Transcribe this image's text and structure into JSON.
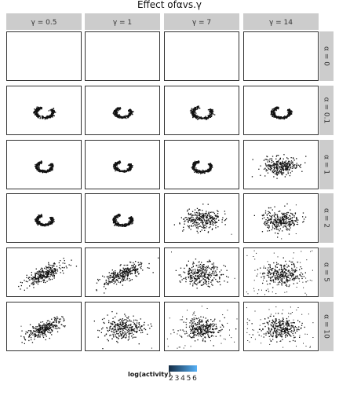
{
  "chart_data": {
    "type": "scatter",
    "title": "Effect ofαvs.γ",
    "facet_cols": [
      "γ = 0.5",
      "γ = 1",
      "γ = 7",
      "γ = 14"
    ],
    "facet_rows": [
      "α = 0",
      "α = 0.1",
      "α = 1",
      "α = 2",
      "α = 5",
      "α = 10"
    ],
    "panels": [
      [
        {
          "shape": "none"
        },
        {
          "shape": "none"
        },
        {
          "shape": "none"
        },
        {
          "shape": "none"
        }
      ],
      [
        {
          "shape": "crescent",
          "spread": 0.1,
          "outliers": 0
        },
        {
          "shape": "crescent",
          "spread": 0.09,
          "outliers": 0
        },
        {
          "shape": "crescent",
          "spread": 0.11,
          "outliers": 0
        },
        {
          "shape": "crescent",
          "spread": 0.1,
          "outliers": 0
        }
      ],
      [
        {
          "shape": "crescent",
          "spread": 0.09,
          "outliers": 0
        },
        {
          "shape": "crescent",
          "spread": 0.09,
          "outliers": 0
        },
        {
          "shape": "crescent",
          "spread": 0.1,
          "outliers": 0
        },
        {
          "shape": "blob",
          "spread": 0.11,
          "outliers": 0
        }
      ],
      [
        {
          "shape": "crescent",
          "spread": 0.09,
          "outliers": 0
        },
        {
          "shape": "crescent",
          "spread": 0.1,
          "outliers": 0
        },
        {
          "shape": "blob",
          "spread": 0.12,
          "outliers": 2
        },
        {
          "shape": "blob",
          "spread": 0.12,
          "outliers": 6
        }
      ],
      [
        {
          "shape": "ellipse",
          "spread": 0.12,
          "outliers": 0
        },
        {
          "shape": "ellipse",
          "spread": 0.13,
          "outliers": 0
        },
        {
          "shape": "blob",
          "spread": 0.13,
          "outliers": 10
        },
        {
          "shape": "blob",
          "spread": 0.13,
          "outliers": 60
        }
      ],
      [
        {
          "shape": "ellipse",
          "spread": 0.12,
          "outliers": 1
        },
        {
          "shape": "blob",
          "spread": 0.13,
          "outliers": 3
        },
        {
          "shape": "blob",
          "spread": 0.12,
          "outliers": 50
        },
        {
          "shape": "blob",
          "spread": 0.12,
          "outliers": 70
        }
      ]
    ],
    "point_color": "#111111",
    "legend": {
      "title": "log(activity)",
      "ticks": [
        "2",
        "3",
        "4",
        "5",
        "6"
      ],
      "color_low": "#132b43",
      "color_high": "#56b1f7",
      "position": "bottom"
    },
    "strip_fill": "#cccccc",
    "panel_border": "#333333",
    "grid": false
  }
}
